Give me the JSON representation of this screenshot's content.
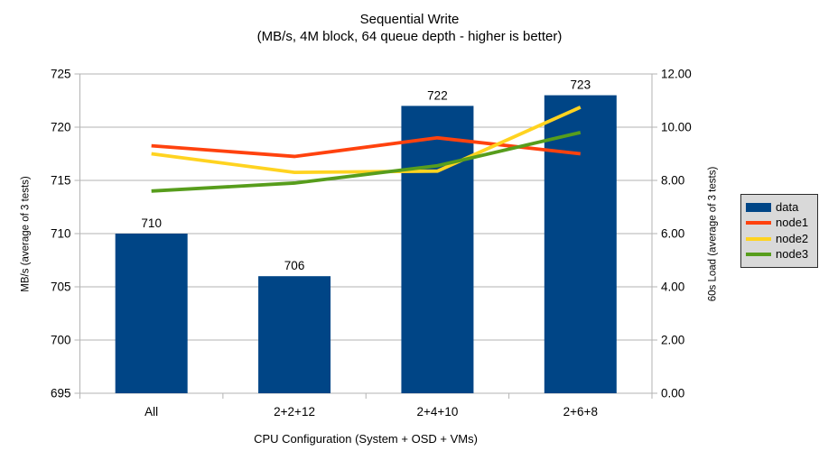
{
  "title": "Sequential Write",
  "subtitle": "(MB/s, 4M block, 64 queue depth - higher is better)",
  "axes": {
    "x_title": "CPU Configuration (System + OSD + VMs)",
    "y_left_title": "MB/s (average of 3 tests)",
    "y_right_title": "60s Load (average of 3 tests)"
  },
  "colors": {
    "bar": "#004586",
    "node1": "#ff420e",
    "node2": "#ffd320",
    "node3": "#579d1c",
    "grid": "#b3b3b3",
    "axis": "#b3b3b3",
    "text": "#000000",
    "legend_bg": "#d9d9d9",
    "legend_border": "#2b2b2b"
  },
  "chart_data": {
    "type": "bar+line",
    "title": "Sequential Write",
    "subtitle": "(MB/s, 4M block, 64 queue depth - higher is better)",
    "xlabel": "CPU Configuration (System + OSD + VMs)",
    "categories": [
      "All",
      "2+2+12",
      "2+4+10",
      "2+6+8"
    ],
    "bar_series": {
      "name": "data",
      "axis": "left",
      "color": "#004586",
      "values": [
        710,
        706,
        722,
        723
      ],
      "data_labels": [
        "710",
        "706",
        "722",
        "723"
      ]
    },
    "line_series": [
      {
        "name": "node1",
        "axis": "right",
        "color": "#ff420e",
        "values": [
          9.3,
          8.9,
          9.6,
          9.0
        ]
      },
      {
        "name": "node2",
        "axis": "right",
        "color": "#ffd320",
        "values": [
          9.0,
          8.3,
          8.35,
          10.75
        ]
      },
      {
        "name": "node3",
        "axis": "right",
        "color": "#579d1c",
        "values": [
          7.6,
          7.9,
          8.55,
          9.8
        ]
      }
    ],
    "y_left": {
      "label": "MB/s (average of 3 tests)",
      "min": 695,
      "max": 725,
      "step": 5,
      "tick_labels": [
        "695",
        "700",
        "705",
        "710",
        "715",
        "720",
        "725"
      ]
    },
    "y_right": {
      "label": "60s Load (average of 3 tests)",
      "min": 0,
      "max": 12,
      "step": 2,
      "tick_labels": [
        "0.00",
        "2.00",
        "4.00",
        "6.00",
        "8.00",
        "10.00",
        "12.00"
      ]
    },
    "grid": true,
    "legend_position": "right",
    "legend_entries": [
      "data",
      "node1",
      "node2",
      "node3"
    ]
  }
}
